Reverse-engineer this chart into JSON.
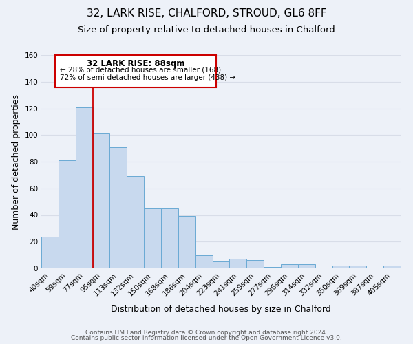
{
  "title": "32, LARK RISE, CHALFORD, STROUD, GL6 8FF",
  "subtitle": "Size of property relative to detached houses in Chalford",
  "xlabel": "Distribution of detached houses by size in Chalford",
  "ylabel": "Number of detached properties",
  "categories": [
    "40sqm",
    "59sqm",
    "77sqm",
    "95sqm",
    "113sqm",
    "132sqm",
    "150sqm",
    "168sqm",
    "186sqm",
    "204sqm",
    "223sqm",
    "241sqm",
    "259sqm",
    "277sqm",
    "296sqm",
    "314sqm",
    "332sqm",
    "350sqm",
    "369sqm",
    "387sqm",
    "405sqm"
  ],
  "values": [
    24,
    81,
    121,
    101,
    91,
    69,
    45,
    45,
    39,
    10,
    5,
    7,
    6,
    1,
    3,
    3,
    0,
    2,
    2,
    0,
    2
  ],
  "bar_color": "#c8d9ee",
  "bar_edge_color": "#6aaad4",
  "ylim": [
    0,
    160
  ],
  "yticks": [
    0,
    20,
    40,
    60,
    80,
    100,
    120,
    140,
    160
  ],
  "property_line_color": "#cc0000",
  "annotation_title": "32 LARK RISE: 88sqm",
  "annotation_line1": "← 28% of detached houses are smaller (168)",
  "annotation_line2": "72% of semi-detached houses are larger (438) →",
  "annotation_box_color": "#cc0000",
  "footer_line1": "Contains HM Land Registry data © Crown copyright and database right 2024.",
  "footer_line2": "Contains public sector information licensed under the Open Government Licence v3.0.",
  "background_color": "#edf1f8",
  "grid_color": "#d8dde8",
  "title_fontsize": 11,
  "subtitle_fontsize": 9.5,
  "axis_label_fontsize": 9,
  "tick_fontsize": 7.5,
  "footer_fontsize": 6.5
}
